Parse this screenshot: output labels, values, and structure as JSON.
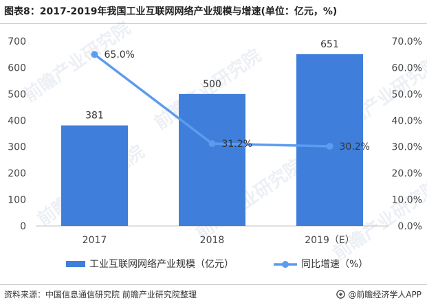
{
  "header": {
    "title": "图表8：2017-2019年我国工业互联网网络产业规模与增速(单位：亿元，%)"
  },
  "footer": {
    "source": "资料来源：中国信息通信研究院 前瞻产业研究院整理",
    "brand": "@前瞻经济学人APP"
  },
  "watermark": {
    "text": "前瞻产业研究院"
  },
  "colors": {
    "bar": "#3f7fdb",
    "line": "#5b9bf0",
    "axis_text": "#444444",
    "grid": "#e6e6e6"
  },
  "chart_data": {
    "type": "bar",
    "categories": [
      "2017",
      "2018",
      "2019（E）"
    ],
    "series": [
      {
        "name": "工业互联网网络产业规模（亿元）",
        "type": "bar",
        "axis": "left",
        "values": [
          381,
          500,
          651
        ],
        "labels": [
          "381",
          "500",
          "651"
        ]
      },
      {
        "name": "同比增速（%）",
        "type": "line",
        "axis": "right",
        "values": [
          65.0,
          31.2,
          30.2
        ],
        "labels": [
          "65.0%",
          "31.2%",
          "30.2%"
        ]
      }
    ],
    "y_left": {
      "lim": [
        0,
        700
      ],
      "ticks": [
        "0",
        "100",
        "200",
        "300",
        "400",
        "500",
        "600",
        "700"
      ]
    },
    "y_right": {
      "lim": [
        0,
        70
      ],
      "ticks": [
        "0.0%",
        "10.0%",
        "20.0%",
        "30.0%",
        "40.0%",
        "50.0%",
        "60.0%",
        "70.0%"
      ]
    },
    "grid": false,
    "legend_position": "bottom"
  }
}
